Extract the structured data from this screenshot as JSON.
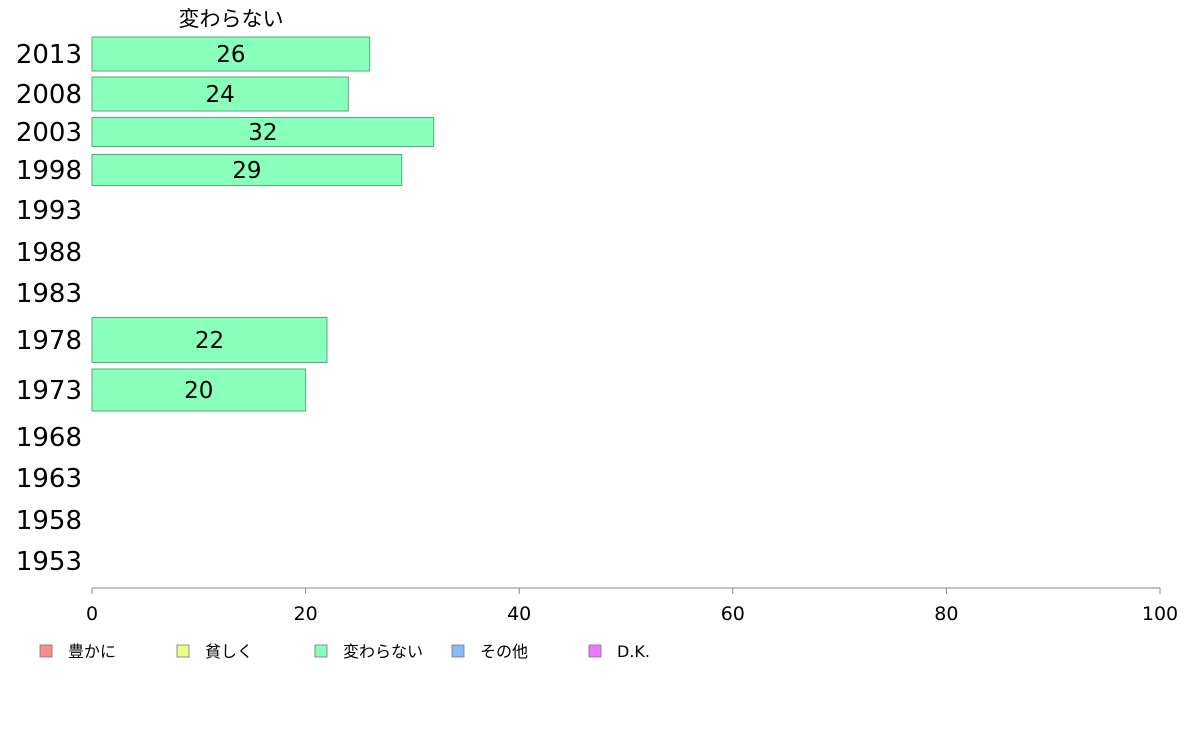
{
  "chart_data": {
    "type": "bar",
    "orientation": "horizontal",
    "title": "変わらない",
    "categories": [
      "2013",
      "2008",
      "2003",
      "1998",
      "1993",
      "1988",
      "1983",
      "1978",
      "1973",
      "1968",
      "1963",
      "1958",
      "1953"
    ],
    "series": [
      {
        "name": "変わらない",
        "values": [
          26,
          24,
          32,
          29,
          null,
          null,
          null,
          22,
          20,
          null,
          null,
          null,
          null
        ]
      }
    ],
    "xlim": [
      0,
      100
    ],
    "xticks": [
      "0",
      "20",
      "40",
      "60",
      "80",
      "100"
    ],
    "grid": false,
    "legend": {
      "placement": "bottom",
      "items": [
        {
          "label": "豊かに",
          "color": "#ff8c8c"
        },
        {
          "label": "貧しく",
          "color": "#eeff88"
        },
        {
          "label": "変わらない",
          "color": "#88ffbb"
        },
        {
          "label": "その他",
          "color": "#88bbff"
        },
        {
          "label": "D.K.",
          "color": "#ee77ff"
        }
      ]
    },
    "bar_color": "#88ffbb",
    "bar_stroke": "#55aa77"
  }
}
